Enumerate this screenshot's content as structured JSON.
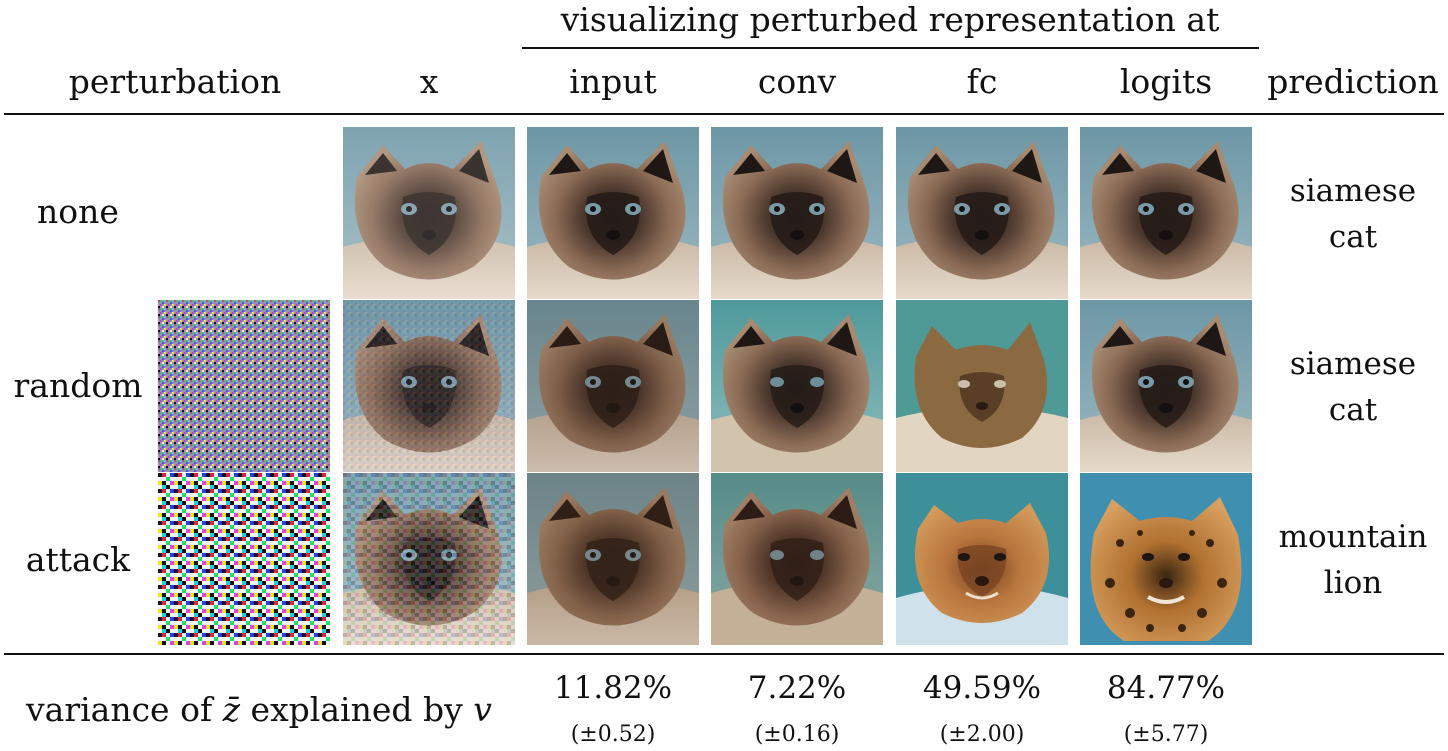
{
  "group_header": "visualizing perturbed representation at",
  "columns": {
    "perturbation": "perturbation",
    "x": "x",
    "input": "input",
    "conv": "conv",
    "fc": "fc",
    "logits": "logits",
    "prediction": "prediction"
  },
  "rows": [
    {
      "label": "none",
      "prediction_line1": "siamese",
      "prediction_line2": "cat"
    },
    {
      "label": "random",
      "prediction_line1": "siamese",
      "prediction_line2": "cat"
    },
    {
      "label": "attack",
      "prediction_line1": "mountain",
      "prediction_line2": "lion"
    }
  ],
  "footer": {
    "label_pre": "variance of ",
    "label_var": "z̄",
    "label_mid": " explained by ",
    "label_v": "v",
    "values": [
      {
        "value": "11.82%",
        "std": "(±0.52)"
      },
      {
        "value": "7.22%",
        "std": "(±0.16)"
      },
      {
        "value": "49.59%",
        "std": "(±2.00)"
      },
      {
        "value": "84.77%",
        "std": "(±5.77)"
      }
    ]
  },
  "colors": {
    "siamese_fur": "#8a6a55",
    "siamese_mask": "#2e2420",
    "background_blue": "#7fa6b4",
    "lion_fur": "#b8743c"
  }
}
